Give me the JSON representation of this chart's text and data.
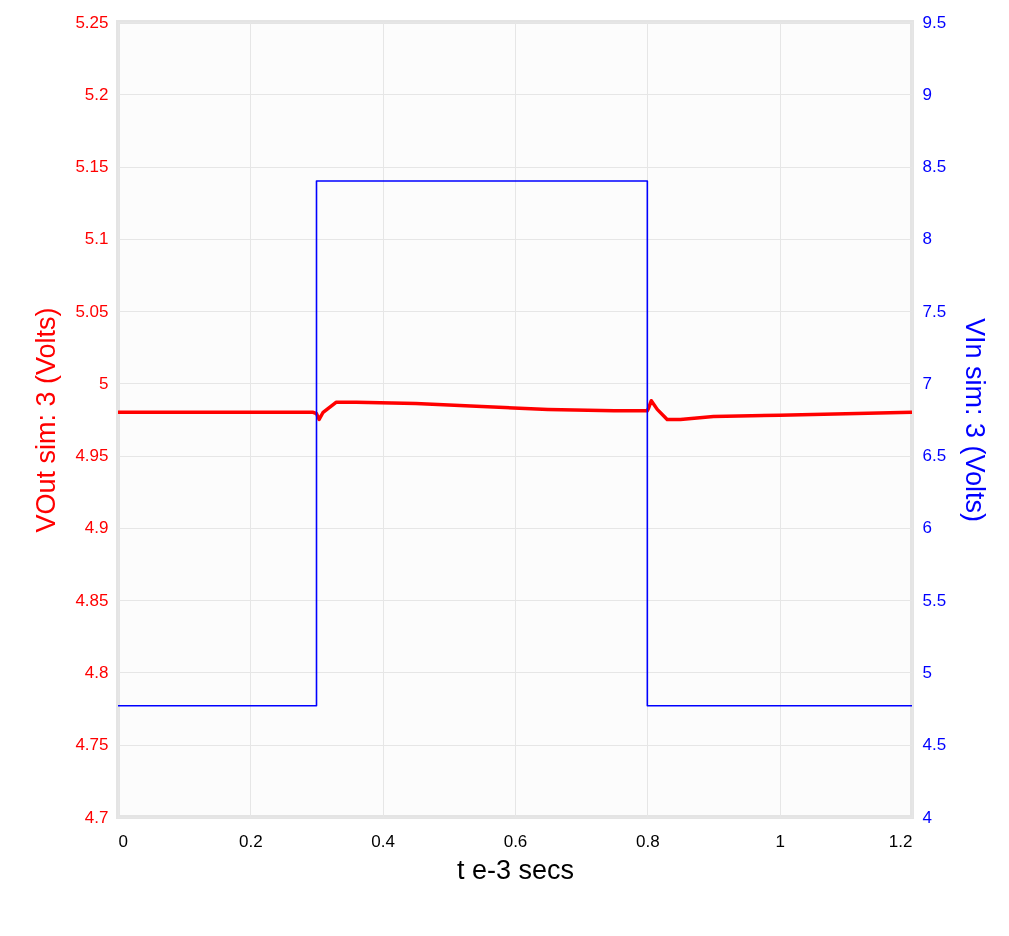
{
  "chart_data": {
    "type": "line",
    "xlabel": "t e-3 secs",
    "ylabel": "VOut sim:  3 (Volts)",
    "y2label": "VIn sim:  3 (Volts)",
    "xlim": [
      0,
      1.2
    ],
    "xticks": [
      0,
      0.2,
      0.4,
      0.6,
      0.8,
      1,
      1.2
    ],
    "ylim": [
      4.7,
      5.25
    ],
    "yticks": [
      4.7,
      4.75,
      4.8,
      4.85,
      4.9,
      4.95,
      5,
      5.05,
      5.1,
      5.15,
      5.2,
      5.25
    ],
    "y2lim": [
      4,
      9.5
    ],
    "y2ticks": [
      4,
      4.5,
      5,
      5.5,
      6,
      6.5,
      7,
      7.5,
      8,
      8.5,
      9,
      9.5
    ],
    "grid": true,
    "series": [
      {
        "color": "#ff0000",
        "x": [
          0,
          0.295,
          0.3,
          0.304,
          0.31,
          0.33,
          0.36,
          0.45,
          0.55,
          0.65,
          0.75,
          0.8,
          0.802,
          0.806,
          0.815,
          0.83,
          0.85,
          0.9,
          1.0,
          1.1,
          1.2
        ],
        "values": [
          4.98,
          4.98,
          4.979,
          4.975,
          4.98,
          4.987,
          4.987,
          4.986,
          4.984,
          4.982,
          4.981,
          4.981,
          4.983,
          4.988,
          4.982,
          4.975,
          4.975,
          4.977,
          4.978,
          4.979,
          4.98
        ]
      },
      {
        "color": "#0000ff",
        "axis": "y2",
        "x": [
          0,
          0.3,
          0.3,
          0.8,
          0.8,
          1.2
        ],
        "values": [
          4.77,
          4.77,
          8.4,
          8.4,
          4.77,
          4.77
        ]
      }
    ]
  }
}
